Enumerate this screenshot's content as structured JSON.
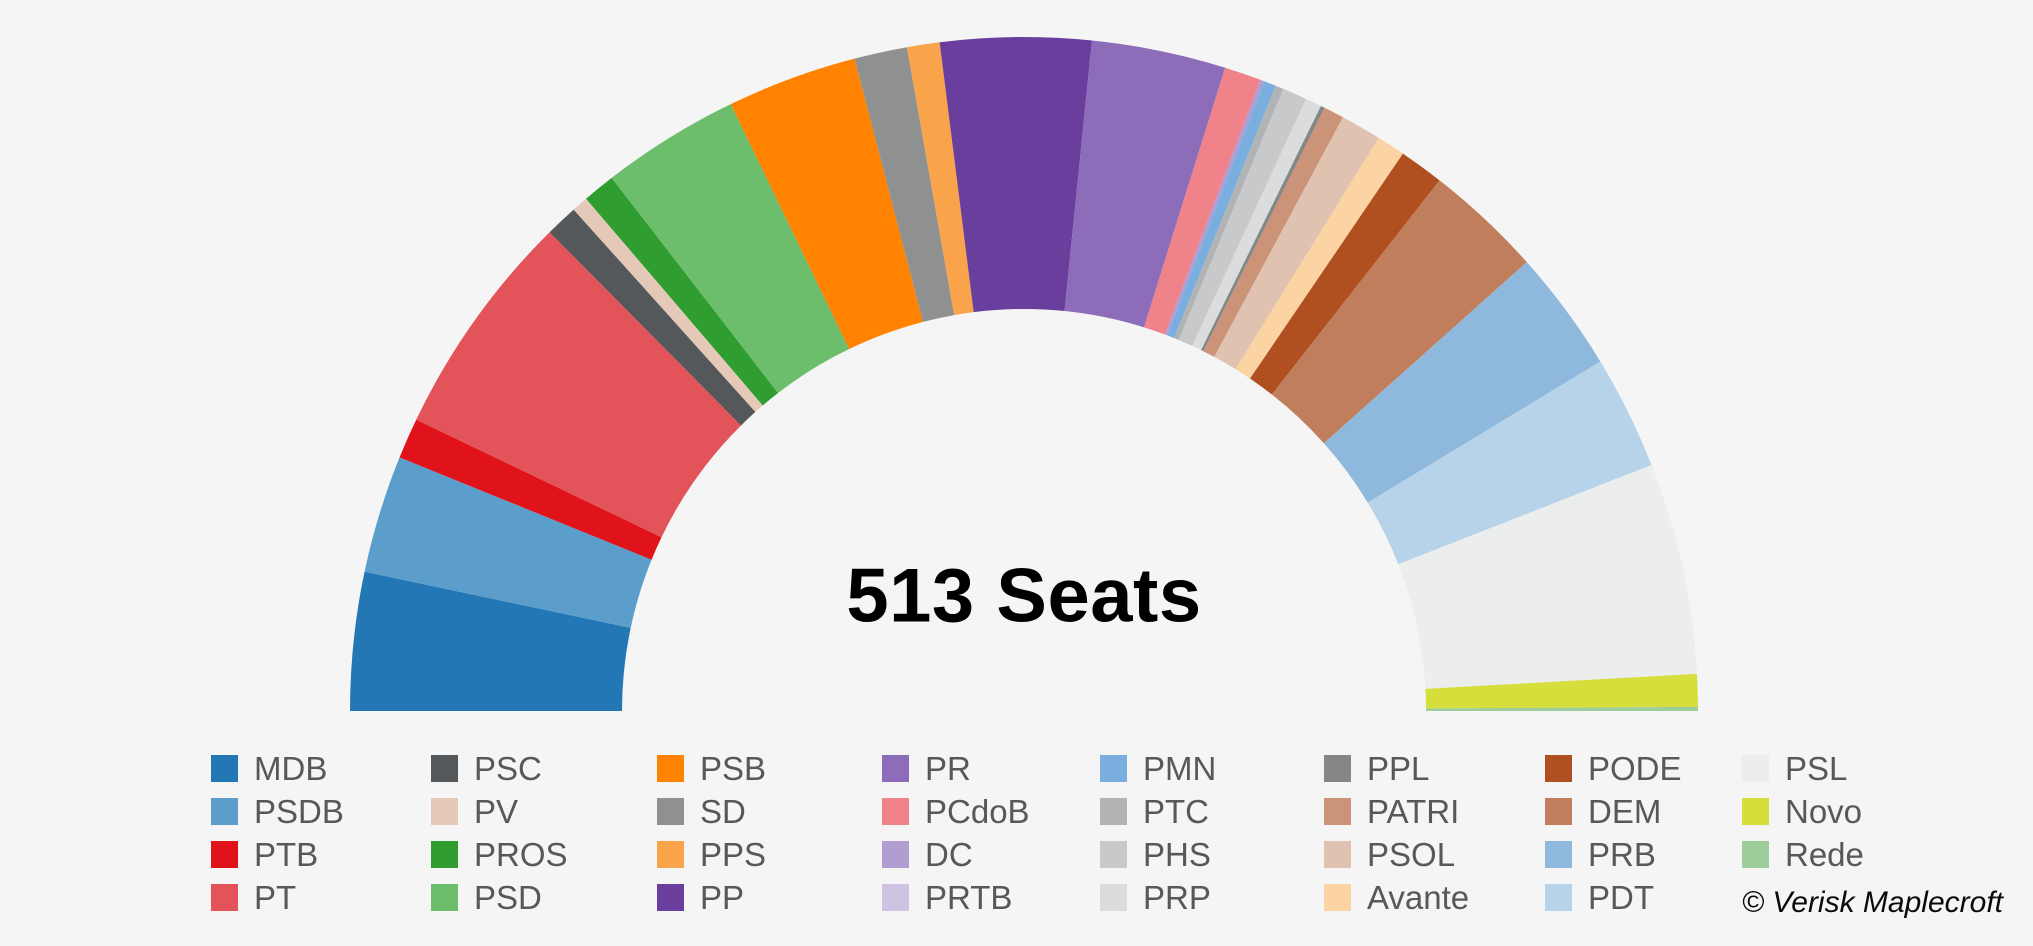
{
  "background_color": "#F5F5F6",
  "chart_data": {
    "type": "pie",
    "variant": "half-donut parliament seat chart",
    "title": "513 Seats",
    "total_seats": 513,
    "attribution": "© Verisk Maplecroft",
    "legend_position": "bottom",
    "legend_columns": 8,
    "legend_rows_per_column": 4,
    "text_color": "#58585A",
    "center_label_color": "#000000",
    "parties": [
      {
        "name": "MDB",
        "seats": 34,
        "color": "#2377B4"
      },
      {
        "name": "PSDB",
        "seats": 29,
        "color": "#5C9ECB"
      },
      {
        "name": "PTB",
        "seats": 10,
        "color": "#E0131B"
      },
      {
        "name": "PT",
        "seats": 56,
        "color": "#E25459"
      },
      {
        "name": "PSC",
        "seats": 8,
        "color": "#54585B"
      },
      {
        "name": "PV",
        "seats": 4,
        "color": "#E4C8B8"
      },
      {
        "name": "PROS",
        "seats": 8,
        "color": "#2F9D2F"
      },
      {
        "name": "PSD",
        "seats": 34,
        "color": "#6CBE6C"
      },
      {
        "name": "PSB",
        "seats": 32,
        "color": "#FF8200"
      },
      {
        "name": "SD",
        "seats": 13,
        "color": "#8F9191"
      },
      {
        "name": "PPS",
        "seats": 8,
        "color": "#F9A44A"
      },
      {
        "name": "PP",
        "seats": 37,
        "color": "#6A3E9D"
      },
      {
        "name": "PR",
        "seats": 33,
        "color": "#8D6CBA"
      },
      {
        "name": "PCdoB",
        "seats": 9,
        "color": "#EF8389"
      },
      {
        "name": "DC",
        "seats": 1,
        "color": "#B29DD3"
      },
      {
        "name": "PRTB",
        "seats": 0,
        "color": "#CEC3E2"
      },
      {
        "name": "PMN",
        "seats": 3,
        "color": "#7AAEDF"
      },
      {
        "name": "PTC",
        "seats": 2,
        "color": "#B1B3B4"
      },
      {
        "name": "PHS",
        "seats": 6,
        "color": "#C8C9CB"
      },
      {
        "name": "PRP",
        "seats": 4,
        "color": "#DBDCDD"
      },
      {
        "name": "PPL",
        "seats": 1,
        "color": "#858688"
      },
      {
        "name": "PATRI",
        "seats": 5,
        "color": "#CB9378"
      },
      {
        "name": "PSOL",
        "seats": 10,
        "color": "#DFC2B0"
      },
      {
        "name": "Avante",
        "seats": 7,
        "color": "#FCD3A2"
      },
      {
        "name": "PODE",
        "seats": 11,
        "color": "#B04F20"
      },
      {
        "name": "DEM",
        "seats": 29,
        "color": "#C17E5C"
      },
      {
        "name": "PRB",
        "seats": 30,
        "color": "#8FB9DC"
      },
      {
        "name": "PDT",
        "seats": 28,
        "color": "#B7D3EA"
      },
      {
        "name": "PSL",
        "seats": 52,
        "color": "#ECEDED"
      },
      {
        "name": "Novo",
        "seats": 8,
        "color": "#D5DE3B"
      },
      {
        "name": "Rede",
        "seats": 1,
        "color": "#9CCD9B"
      }
    ]
  }
}
